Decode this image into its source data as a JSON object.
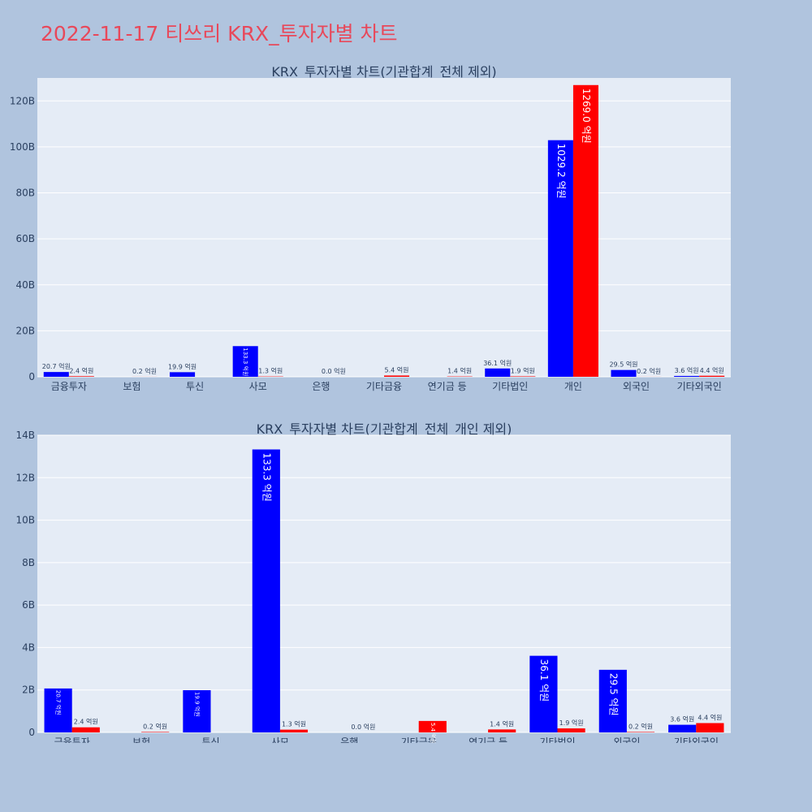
{
  "page": {
    "title": "2022-11-17 티쓰리 KRX_투자자별 차트"
  },
  "colors": {
    "buy": "#0000ff",
    "sell": "#ff0000",
    "plot_bg": "#e5ecf6",
    "page_bg": "#b0c4de",
    "title": "#e8485a"
  },
  "chart_data": [
    {
      "type": "bar",
      "title": "KRX_투자자별 차트(기관합계_전체 제외)",
      "categories": [
        "금융투자",
        "보험",
        "투신",
        "사모",
        "은행",
        "기타금융",
        "연기금 등",
        "기타법인",
        "개인",
        "외국인",
        "기타외국인"
      ],
      "series": [
        {
          "values": [
            2.07,
            0,
            1.99,
            13.33,
            0,
            0,
            0,
            3.61,
            102.92,
            2.95,
            0.36
          ],
          "labels": [
            "20.7 억원",
            "",
            "19.9 억원",
            "133.3 억원",
            "",
            "",
            "",
            "36.1 억원",
            "1029.2 억원",
            "29.5 억원",
            "3.6 억원"
          ]
        },
        {
          "values": [
            0.24,
            0.02,
            0,
            0.13,
            0,
            0.54,
            0.14,
            0.19,
            126.9,
            0.02,
            0.44
          ],
          "labels": [
            "2.4 억원",
            "0.2 억원",
            "",
            "1.3 억원",
            "0.0 억원",
            "5.4 억원",
            "1.4 억원",
            "1.9 억원",
            "1269.0 억원",
            "0.2 억원",
            "4.4 억원"
          ]
        }
      ],
      "ylim": [
        0,
        130
      ],
      "yticks": [
        0,
        20,
        40,
        60,
        80,
        100,
        120
      ],
      "ytick_labels": [
        "0",
        "20B",
        "40B",
        "60B",
        "80B",
        "100B",
        "120B"
      ],
      "grid": true
    },
    {
      "type": "bar",
      "title": "KRX_투자자별 차트(기관합계_전체_개인 제외)",
      "categories": [
        "금융투자",
        "보험",
        "투신",
        "사모",
        "은행",
        "기타금융",
        "연기금 등",
        "기타법인",
        "외국인",
        "기타외국인"
      ],
      "series": [
        {
          "values": [
            2.07,
            0,
            1.99,
            13.33,
            0,
            0,
            0,
            3.61,
            2.95,
            0.36
          ],
          "labels": [
            "20.7 억원",
            "",
            "19.9 억원",
            "133.3 억원",
            "",
            "",
            "",
            "36.1 억원",
            "29.5 억원",
            "3.6 억원"
          ]
        },
        {
          "values": [
            0.24,
            0.02,
            0,
            0.13,
            0,
            0.54,
            0.14,
            0.19,
            0.02,
            0.44
          ],
          "labels": [
            "2.4 억원",
            "0.2 억원",
            "",
            "1.3 억원",
            "0.0 억원",
            "5.4 억원",
            "1.4 억원",
            "1.9 억원",
            "0.2 억원",
            "4.4 억원"
          ]
        }
      ],
      "ylim": [
        0,
        14
      ],
      "yticks": [
        0,
        2,
        4,
        6,
        8,
        10,
        12,
        14
      ],
      "ytick_labels": [
        "0",
        "2B",
        "4B",
        "6B",
        "8B",
        "10B",
        "12B",
        "14B"
      ],
      "grid": true
    }
  ]
}
